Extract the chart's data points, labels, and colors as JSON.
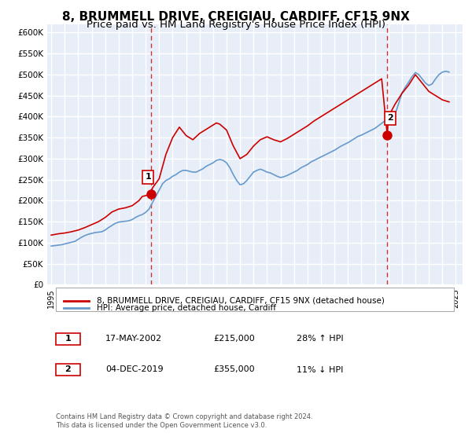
{
  "title": "8, BRUMMELL DRIVE, CREIGIAU, CARDIFF, CF15 9NX",
  "subtitle": "Price paid vs. HM Land Registry's House Price Index (HPI)",
  "title_fontsize": 11,
  "subtitle_fontsize": 9.5,
  "background_color": "#ffffff",
  "plot_bg_color": "#e8eef8",
  "grid_color": "#ffffff",
  "ylim": [
    0,
    620000
  ],
  "xlim_start": 1995,
  "xlim_end": 2025.5,
  "yticks": [
    0,
    50000,
    100000,
    150000,
    200000,
    250000,
    300000,
    350000,
    400000,
    450000,
    500000,
    550000,
    600000
  ],
  "ytick_labels": [
    "£0",
    "£50K",
    "£100K",
    "£150K",
    "£200K",
    "£250K",
    "£300K",
    "£350K",
    "£400K",
    "£450K",
    "£500K",
    "£550K",
    "£600K"
  ],
  "xticks": [
    1995,
    1996,
    1997,
    1998,
    1999,
    2000,
    2001,
    2002,
    2003,
    2004,
    2005,
    2006,
    2007,
    2008,
    2009,
    2010,
    2011,
    2012,
    2013,
    2014,
    2015,
    2016,
    2017,
    2018,
    2019,
    2020,
    2021,
    2022,
    2023,
    2024,
    2025
  ],
  "sale1_x": 2002.38,
  "sale1_y": 215000,
  "sale2_x": 2019.92,
  "sale2_y": 355000,
  "sale_color": "#cc0000",
  "hpi_color": "#6699cc",
  "sale_line_color": "#cc0000",
  "dashed_line_color": "#cc0000",
  "legend_label_sale": "8, BRUMMELL DRIVE, CREIGIAU, CARDIFF, CF15 9NX (detached house)",
  "legend_label_hpi": "HPI: Average price, detached house, Cardiff",
  "annotation1_label": "1",
  "annotation2_label": "2",
  "table_row1": [
    "1",
    "17-MAY-2002",
    "£215,000",
    "28% ↑ HPI"
  ],
  "table_row2": [
    "2",
    "04-DEC-2019",
    "£355,000",
    "11% ↓ HPI"
  ],
  "footer": "Contains HM Land Registry data © Crown copyright and database right 2024.\nThis data is licensed under the Open Government Licence v3.0.",
  "hpi_data": {
    "years": [
      1995.0,
      1995.25,
      1995.5,
      1995.75,
      1996.0,
      1996.25,
      1996.5,
      1996.75,
      1997.0,
      1997.25,
      1997.5,
      1997.75,
      1998.0,
      1998.25,
      1998.5,
      1998.75,
      1999.0,
      1999.25,
      1999.5,
      1999.75,
      2000.0,
      2000.25,
      2000.5,
      2000.75,
      2001.0,
      2001.25,
      2001.5,
      2001.75,
      2002.0,
      2002.25,
      2002.5,
      2002.75,
      2003.0,
      2003.25,
      2003.5,
      2003.75,
      2004.0,
      2004.25,
      2004.5,
      2004.75,
      2005.0,
      2005.25,
      2005.5,
      2005.75,
      2006.0,
      2006.25,
      2006.5,
      2006.75,
      2007.0,
      2007.25,
      2007.5,
      2007.75,
      2008.0,
      2008.25,
      2008.5,
      2008.75,
      2009.0,
      2009.25,
      2009.5,
      2009.75,
      2010.0,
      2010.25,
      2010.5,
      2010.75,
      2011.0,
      2011.25,
      2011.5,
      2011.75,
      2012.0,
      2012.25,
      2012.5,
      2012.75,
      2013.0,
      2013.25,
      2013.5,
      2013.75,
      2014.0,
      2014.25,
      2014.5,
      2014.75,
      2015.0,
      2015.25,
      2015.5,
      2015.75,
      2016.0,
      2016.25,
      2016.5,
      2016.75,
      2017.0,
      2017.25,
      2017.5,
      2017.75,
      2018.0,
      2018.25,
      2018.5,
      2018.75,
      2019.0,
      2019.25,
      2019.5,
      2019.75,
      2020.0,
      2020.25,
      2020.5,
      2020.75,
      2021.0,
      2021.25,
      2021.5,
      2021.75,
      2022.0,
      2022.25,
      2022.5,
      2022.75,
      2023.0,
      2023.25,
      2023.5,
      2023.75,
      2024.0,
      2024.25,
      2024.5
    ],
    "values": [
      92000,
      93000,
      94000,
      95000,
      97000,
      99000,
      101000,
      103000,
      108000,
      113000,
      117000,
      120000,
      122000,
      124000,
      125000,
      126000,
      130000,
      136000,
      141000,
      146000,
      149000,
      150000,
      151000,
      152000,
      155000,
      160000,
      164000,
      167000,
      172000,
      180000,
      195000,
      210000,
      225000,
      240000,
      248000,
      252000,
      258000,
      262000,
      268000,
      272000,
      272000,
      270000,
      268000,
      268000,
      272000,
      276000,
      282000,
      286000,
      290000,
      296000,
      298000,
      296000,
      290000,
      278000,
      262000,
      248000,
      238000,
      240000,
      248000,
      258000,
      268000,
      272000,
      275000,
      272000,
      268000,
      266000,
      262000,
      258000,
      255000,
      257000,
      260000,
      264000,
      268000,
      272000,
      278000,
      282000,
      286000,
      292000,
      296000,
      300000,
      304000,
      308000,
      312000,
      316000,
      320000,
      325000,
      330000,
      334000,
      338000,
      343000,
      348000,
      353000,
      356000,
      360000,
      364000,
      368000,
      372000,
      378000,
      384000,
      390000,
      394000,
      396000,
      406000,
      430000,
      456000,
      470000,
      482000,
      495000,
      505000,
      500000,
      490000,
      480000,
      474000,
      478000,
      490000,
      500000,
      506000,
      508000,
      506000
    ]
  },
  "sale_price_data": {
    "years": [
      1995.0,
      1995.5,
      1996.0,
      1996.5,
      1997.0,
      1997.5,
      1998.0,
      1998.5,
      1999.0,
      1999.5,
      2000.0,
      2000.5,
      2001.0,
      2001.5,
      2001.75,
      2002.38,
      2002.5,
      2003.0,
      2003.5,
      2004.0,
      2004.5,
      2005.0,
      2005.5,
      2006.0,
      2006.5,
      2007.0,
      2007.25,
      2007.5,
      2007.75,
      2008.0,
      2008.5,
      2009.0,
      2009.5,
      2010.0,
      2010.5,
      2011.0,
      2011.5,
      2012.0,
      2012.5,
      2013.0,
      2013.5,
      2014.0,
      2014.5,
      2015.0,
      2015.5,
      2016.0,
      2016.5,
      2017.0,
      2017.5,
      2018.0,
      2018.5,
      2019.0,
      2019.5,
      2019.92,
      2020.0,
      2020.5,
      2021.0,
      2021.5,
      2022.0,
      2022.5,
      2023.0,
      2023.5,
      2024.0,
      2024.5
    ],
    "values": [
      118000,
      121000,
      123000,
      126000,
      130000,
      136000,
      143000,
      150000,
      160000,
      173000,
      180000,
      183000,
      188000,
      200000,
      210000,
      215000,
      230000,
      252000,
      310000,
      350000,
      375000,
      355000,
      345000,
      360000,
      370000,
      380000,
      385000,
      382000,
      375000,
      368000,
      330000,
      300000,
      310000,
      330000,
      345000,
      352000,
      345000,
      340000,
      348000,
      358000,
      368000,
      378000,
      390000,
      400000,
      410000,
      420000,
      430000,
      440000,
      450000,
      460000,
      470000,
      480000,
      490000,
      355000,
      400000,
      430000,
      455000,
      475000,
      500000,
      480000,
      460000,
      450000,
      440000,
      435000
    ]
  }
}
